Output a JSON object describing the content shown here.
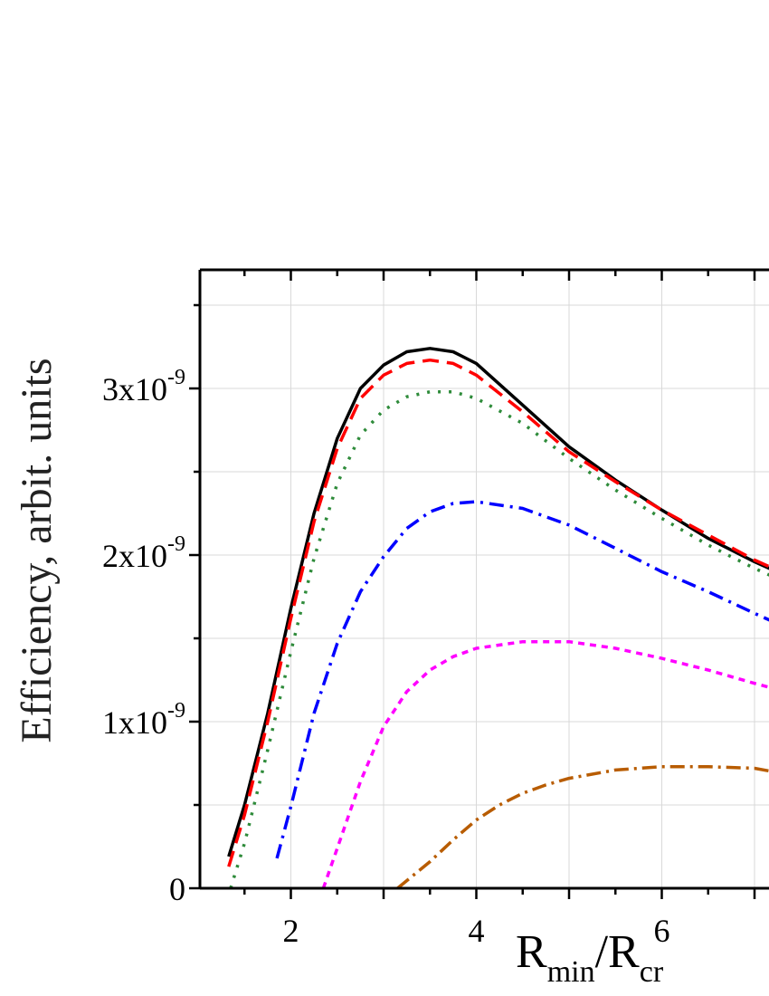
{
  "chart_data": {
    "type": "line",
    "ylabel": "Efficiency, arbit. units",
    "xlabel": {
      "r1": "R",
      "sub1": "min",
      "sep": "/R",
      "sub2": "cr"
    },
    "xlim": [
      1,
      7.2
    ],
    "ylim": [
      0,
      3.7e-09
    ],
    "grid": true,
    "x_ticks": [
      {
        "value": 2,
        "label": "2"
      },
      {
        "value": 4,
        "label": "4"
      },
      {
        "value": 6,
        "label": "6"
      }
    ],
    "y_ticks": [
      {
        "value": 0,
        "label": "0",
        "exp": ""
      },
      {
        "value": 1e-09,
        "label": "1x10",
        "exp": "-9"
      },
      {
        "value": 2e-09,
        "label": "2x10",
        "exp": "-9"
      },
      {
        "value": 3e-09,
        "label": "3x10",
        "exp": "-9"
      }
    ],
    "series": [
      {
        "color": "#000000",
        "dash": "",
        "x": [
          1.33,
          1.5,
          1.75,
          2.0,
          2.25,
          2.5,
          2.75,
          3.0,
          3.25,
          3.5,
          3.75,
          4.0,
          4.5,
          5.0,
          5.5,
          6.0,
          6.5,
          7.0,
          7.2
        ],
        "y": [
          1.9e-10,
          5e-10,
          1.05e-09,
          1.68e-09,
          2.25e-09,
          2.7e-09,
          3e-09,
          3.14e-09,
          3.22e-09,
          3.24e-09,
          3.22e-09,
          3.15e-09,
          2.9e-09,
          2.65e-09,
          2.45e-09,
          2.27e-09,
          2.1e-09,
          1.96e-09,
          1.91e-09
        ]
      },
      {
        "color": "#ff0000",
        "dash": "18,9",
        "x": [
          1.33,
          1.5,
          1.75,
          2.0,
          2.25,
          2.5,
          2.75,
          3.0,
          3.25,
          3.5,
          3.75,
          4.0,
          4.5,
          5.0,
          5.5,
          6.0,
          6.5,
          7.0,
          7.2
        ],
        "y": [
          1.3e-10,
          4.4e-10,
          1e-09,
          1.62e-09,
          2.2e-09,
          2.64e-09,
          2.94e-09,
          3.08e-09,
          3.15e-09,
          3.17e-09,
          3.15e-09,
          3.08e-09,
          2.86e-09,
          2.62e-09,
          2.44e-09,
          2.27e-09,
          2.12e-09,
          1.97e-09,
          1.92e-09
        ]
      },
      {
        "color": "#2e8b3a",
        "dash": "3,9",
        "x": [
          1.35,
          1.5,
          1.75,
          2.0,
          2.25,
          2.5,
          2.75,
          3.0,
          3.25,
          3.5,
          3.75,
          4.0,
          4.5,
          5.0,
          5.5,
          6.0,
          6.5,
          7.0,
          7.2
        ],
        "y": [
          0.0,
          2.7e-10,
          8.3e-10,
          1.42e-09,
          1.98e-09,
          2.43e-09,
          2.72e-09,
          2.87e-09,
          2.95e-09,
          2.98e-09,
          2.98e-09,
          2.94e-09,
          2.79e-09,
          2.58e-09,
          2.39e-09,
          2.22e-09,
          2.06e-09,
          1.92e-09,
          1.87e-09
        ]
      },
      {
        "color": "#0000ff",
        "dash": "16,7,3,7",
        "x": [
          1.85,
          2.0,
          2.25,
          2.5,
          2.75,
          3.0,
          3.25,
          3.5,
          3.75,
          4.0,
          4.5,
          5.0,
          5.5,
          6.0,
          6.5,
          7.0,
          7.2
        ],
        "y": [
          1.8e-10,
          4.9e-10,
          1.05e-09,
          1.47e-09,
          1.78e-09,
          1.99e-09,
          2.16e-09,
          2.26e-09,
          2.31e-09,
          2.32e-09,
          2.28e-09,
          2.18e-09,
          2.04e-09,
          1.9e-09,
          1.78e-09,
          1.65e-09,
          1.6e-09
        ]
      },
      {
        "color": "#ff00ff",
        "dash": "7,6",
        "x": [
          2.35,
          2.5,
          2.75,
          3.0,
          3.25,
          3.5,
          3.75,
          4.0,
          4.5,
          5.0,
          5.5,
          6.0,
          6.5,
          7.0,
          7.2
        ],
        "y": [
          0.0,
          2.4e-10,
          6.4e-10,
          9.7e-10,
          1.18e-09,
          1.31e-09,
          1.39e-09,
          1.44e-09,
          1.48e-09,
          1.48e-09,
          1.44e-09,
          1.38e-09,
          1.31e-09,
          1.23e-09,
          1.2e-09
        ]
      },
      {
        "color": "#b85c00",
        "dash": "16,6,3,6",
        "x": [
          3.15,
          3.5,
          3.75,
          4.0,
          4.25,
          4.5,
          4.75,
          5.0,
          5.5,
          6.0,
          6.5,
          7.0,
          7.2
        ],
        "y": [
          0.0,
          1.6e-10,
          2.9e-10,
          4.1e-10,
          5e-10,
          5.7e-10,
          6.2e-10,
          6.6e-10,
          7.1e-10,
          7.3e-10,
          7.3e-10,
          7.2e-10,
          7e-10
        ]
      }
    ]
  }
}
